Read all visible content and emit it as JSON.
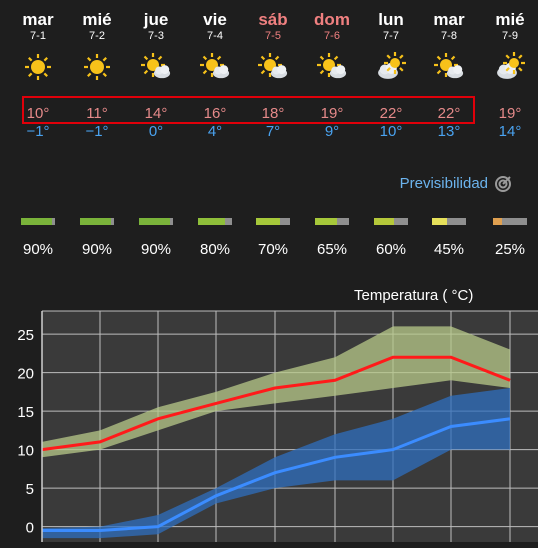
{
  "days": [
    {
      "name": "mar",
      "date": "7-1",
      "icon": "sun-icon",
      "hi": "10°",
      "lo": "−1°",
      "weekend": false,
      "reliability": "90%",
      "level": 0.9,
      "color": "#7ab33a"
    },
    {
      "name": "mié",
      "date": "7-2",
      "icon": "sun-icon",
      "hi": "11°",
      "lo": "−1°",
      "weekend": false,
      "reliability": "90%",
      "level": 0.9,
      "color": "#7ab33a"
    },
    {
      "name": "jue",
      "date": "7-3",
      "icon": "sun-cloud-icon",
      "hi": "14°",
      "lo": "0°",
      "weekend": false,
      "reliability": "90%",
      "level": 0.9,
      "color": "#7ab33a"
    },
    {
      "name": "vie",
      "date": "7-4",
      "icon": "sun-cloud-icon",
      "hi": "16°",
      "lo": "4°",
      "weekend": false,
      "reliability": "80%",
      "level": 0.8,
      "color": "#8fbf3a"
    },
    {
      "name": "sáb",
      "date": "7-5",
      "icon": "sun-cloud-icon",
      "hi": "18°",
      "lo": "7°",
      "weekend": true,
      "reliability": "70%",
      "level": 0.7,
      "color": "#a6c83a"
    },
    {
      "name": "dom",
      "date": "7-6",
      "icon": "sun-cloud-icon",
      "hi": "19°",
      "lo": "9°",
      "weekend": true,
      "reliability": "65%",
      "level": 0.65,
      "color": "#a6c83a"
    },
    {
      "name": "lun",
      "date": "7-7",
      "icon": "cloud-sun-icon",
      "hi": "22°",
      "lo": "10°",
      "weekend": false,
      "reliability": "60%",
      "level": 0.6,
      "color": "#b5c83a"
    },
    {
      "name": "mar",
      "date": "7-8",
      "icon": "sun-cloud-icon",
      "hi": "22°",
      "lo": "13°",
      "weekend": false,
      "reliability": "45%",
      "level": 0.45,
      "color": "#e6e05a"
    },
    {
      "name": "mié",
      "date": "7-9",
      "icon": "cloud-sun-icon",
      "hi": "19°",
      "lo": "14°",
      "weekend": false,
      "reliability": "25%",
      "level": 0.25,
      "color": "#e0a050"
    }
  ],
  "predictability": {
    "label": "Previsibilidad"
  },
  "colors": {
    "high": "#e68a8a",
    "low": "#4aa3f0",
    "weekend": "#f08080",
    "highlight": "#e0000a"
  },
  "chart_data": {
    "type": "line",
    "title": "Temperatura ( °C)",
    "yticks": [
      "25",
      "20",
      "15",
      "10",
      "5",
      "0"
    ],
    "ylim": [
      -2,
      28
    ],
    "x": [
      "7-1",
      "7-2",
      "7-3",
      "7-4",
      "7-5",
      "7-6",
      "7-7",
      "7-8",
      "7-9"
    ],
    "grid": true,
    "series": [
      {
        "color": "#ff1a1a",
        "values": [
          10,
          11,
          14,
          16,
          18,
          19,
          22,
          22,
          19
        ],
        "band_lo": [
          9,
          10,
          12.5,
          15,
          16,
          17,
          18,
          19,
          18
        ],
        "band_hi": [
          11,
          12.5,
          15.5,
          17.5,
          20,
          22,
          26,
          26,
          23
        ],
        "band_color": "#b8c98a"
      },
      {
        "color": "#3b8cff",
        "values": [
          -0.5,
          -0.5,
          0,
          4,
          7,
          9,
          10,
          13,
          14
        ],
        "band_lo": [
          -1.5,
          -1.5,
          -1,
          3,
          5,
          6,
          6,
          10,
          10
        ],
        "band_hi": [
          -0.2,
          0,
          1.5,
          5,
          9,
          12,
          14,
          17,
          18
        ],
        "band_color": "#2f6fbf"
      }
    ]
  }
}
